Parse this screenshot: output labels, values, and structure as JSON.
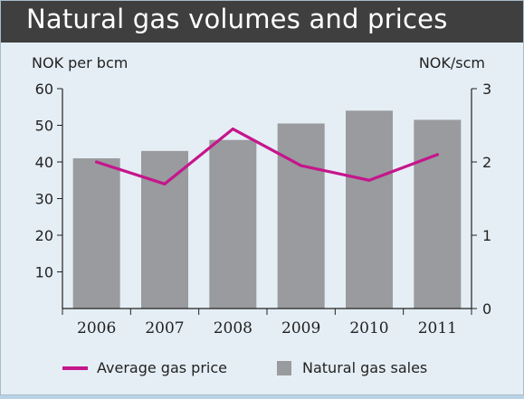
{
  "chart_data": {
    "type": "bar",
    "title": "Natural gas volumes and prices",
    "y_left_label": "NOK per bcm",
    "y_right_label": "NOK/scm",
    "categories": [
      "2006",
      "2007",
      "2008",
      "2009",
      "2010",
      "2011"
    ],
    "series": [
      {
        "name": "Natural gas sales",
        "type": "bar",
        "axis": "left",
        "values": [
          41,
          43,
          46,
          50.5,
          54,
          51.5
        ]
      },
      {
        "name": "Average gas price",
        "type": "line",
        "axis": "right",
        "values": [
          2.0,
          1.7,
          2.45,
          1.95,
          1.75,
          2.1
        ]
      }
    ],
    "y_left": {
      "min": 0,
      "max": 60,
      "ticks": [
        10,
        20,
        30,
        40,
        50,
        60
      ]
    },
    "y_right": {
      "min": 0,
      "max": 3,
      "ticks": [
        0,
        1,
        2,
        3
      ]
    },
    "grid": false,
    "legend_position": "bottom",
    "colors": {
      "bar": "#999b9e",
      "line": "#c5168c"
    }
  }
}
